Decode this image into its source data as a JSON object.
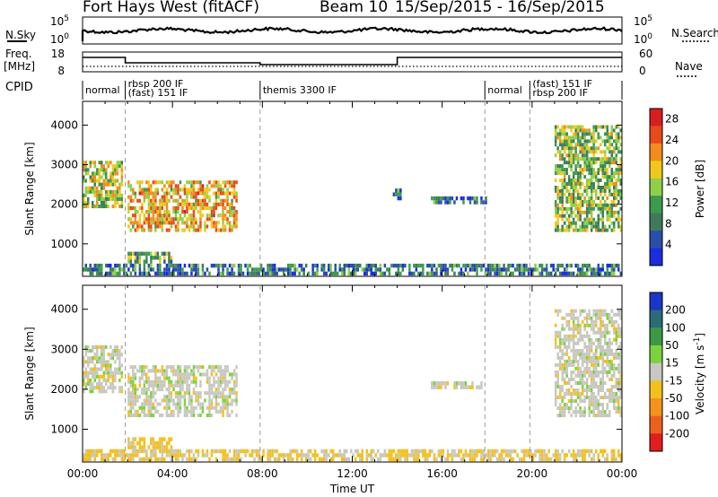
{
  "header": {
    "station": "Fort Hays West (fitACF)",
    "beam": "Beam 10",
    "dates": "15/Sep/2015 - 16/Sep/2015"
  },
  "side_labels": {
    "nsky": "N.Sky",
    "nsky_ticks": [
      "10^5",
      "10^0"
    ],
    "nsearch": "N.Search",
    "freq": "Freq.",
    "freq_unit": "[MHz]",
    "freq_ticks": [
      "18",
      "8"
    ],
    "nave": "Nave",
    "nave_ticks": [
      "60",
      "0"
    ],
    "cpid": "CPID"
  },
  "cpid_segments": [
    {
      "label": "normal",
      "start": 0.0
    },
    {
      "label": "rbsp 200 IF",
      "label2": "(fast) 151 IF",
      "start": 1.9
    },
    {
      "label": "themis 3300 IF",
      "start": 7.9
    },
    {
      "label": "normal",
      "start": 17.9
    },
    {
      "label": "(fast) 151 IF",
      "label2": "rbsp 200 IF",
      "start": 19.9
    }
  ],
  "colors": {
    "power_scale": [
      "#1a2de0",
      "#2a4fa8",
      "#3f7a5a",
      "#3d9a4e",
      "#8fd048",
      "#f0c81c",
      "#f28c1e",
      "#e84a1c",
      "#d81e1e"
    ],
    "velocity_scale": [
      "#1a36c8",
      "#2a6c7a",
      "#3c9a46",
      "#7cd23e",
      "#c8c8c0",
      "#f4c01e",
      "#f2941c",
      "#ec601e",
      "#e01e1e"
    ]
  },
  "chart_data": [
    {
      "type": "heatmap",
      "title": "Power",
      "ylabel": "Slant Range [km]",
      "xlabel": "Time UT",
      "x_ticks": [
        "00:00",
        "04:00",
        "08:00",
        "12:00",
        "16:00",
        "20:00",
        "00:00"
      ],
      "x_range_hours": [
        0,
        24
      ],
      "y_ticks": [
        1000,
        2000,
        3000,
        4000
      ],
      "ylim": [
        180,
        4600
      ],
      "colorbar_label": "Power [dB]",
      "colorbar_ticks": [
        4,
        8,
        12,
        16,
        20,
        24,
        28
      ],
      "colorbar_range": [
        0,
        30
      ],
      "mode_boundaries_hours": [
        1.9,
        7.9,
        17.9,
        19.9
      ],
      "echo_regions": [
        {
          "t_start": 0.0,
          "t_end": 1.8,
          "range_start": 1900,
          "range_end": 3100,
          "level_db": 16
        },
        {
          "t_start": 2.0,
          "t_end": 6.9,
          "range_start": 1300,
          "range_end": 2600,
          "level_db": 20
        },
        {
          "t_start": 2.0,
          "t_end": 4.0,
          "range_start": 500,
          "range_end": 800,
          "level_db": 12
        },
        {
          "t_start": 13.8,
          "t_end": 14.2,
          "range_start": 2100,
          "range_end": 2400,
          "level_db": 8
        },
        {
          "t_start": 15.5,
          "t_end": 18.0,
          "range_start": 2000,
          "range_end": 2200,
          "level_db": 8
        },
        {
          "t_start": 21.0,
          "t_end": 24.0,
          "range_start": 1300,
          "range_end": 4000,
          "level_db": 14
        },
        {
          "t_start": 0.0,
          "t_end": 24.0,
          "range_start": 200,
          "range_end": 500,
          "level_db": 8
        }
      ]
    },
    {
      "type": "heatmap",
      "title": "Velocity",
      "ylabel": "Slant Range [km]",
      "xlabel": "Time UT",
      "x_ticks": [
        "00:00",
        "04:00",
        "08:00",
        "12:00",
        "16:00",
        "20:00",
        "00:00"
      ],
      "x_range_hours": [
        0,
        24
      ],
      "y_ticks": [
        1000,
        2000,
        3000,
        4000
      ],
      "ylim": [
        180,
        4600
      ],
      "colorbar_label": "Velocity [m s^-1]",
      "colorbar_ticks": [
        200,
        100,
        50,
        15,
        -15,
        -50,
        -100,
        -200
      ],
      "mode_boundaries_hours": [
        1.9,
        7.9,
        17.9,
        19.9
      ],
      "echo_regions": [
        {
          "t_start": 0.0,
          "t_end": 1.8,
          "range_start": 1900,
          "range_end": 3100,
          "velocity": 0
        },
        {
          "t_start": 2.0,
          "t_end": 6.9,
          "range_start": 1300,
          "range_end": 2600,
          "velocity": 0
        },
        {
          "t_start": 2.0,
          "t_end": 4.0,
          "range_start": 500,
          "range_end": 800,
          "velocity": -30
        },
        {
          "t_start": 15.5,
          "t_end": 18.0,
          "range_start": 2000,
          "range_end": 2200,
          "velocity": 0
        },
        {
          "t_start": 21.0,
          "t_end": 24.0,
          "range_start": 1300,
          "range_end": 4000,
          "velocity": 0
        },
        {
          "t_start": 0.0,
          "t_end": 24.0,
          "range_start": 200,
          "range_end": 500,
          "velocity": -20
        }
      ]
    }
  ]
}
